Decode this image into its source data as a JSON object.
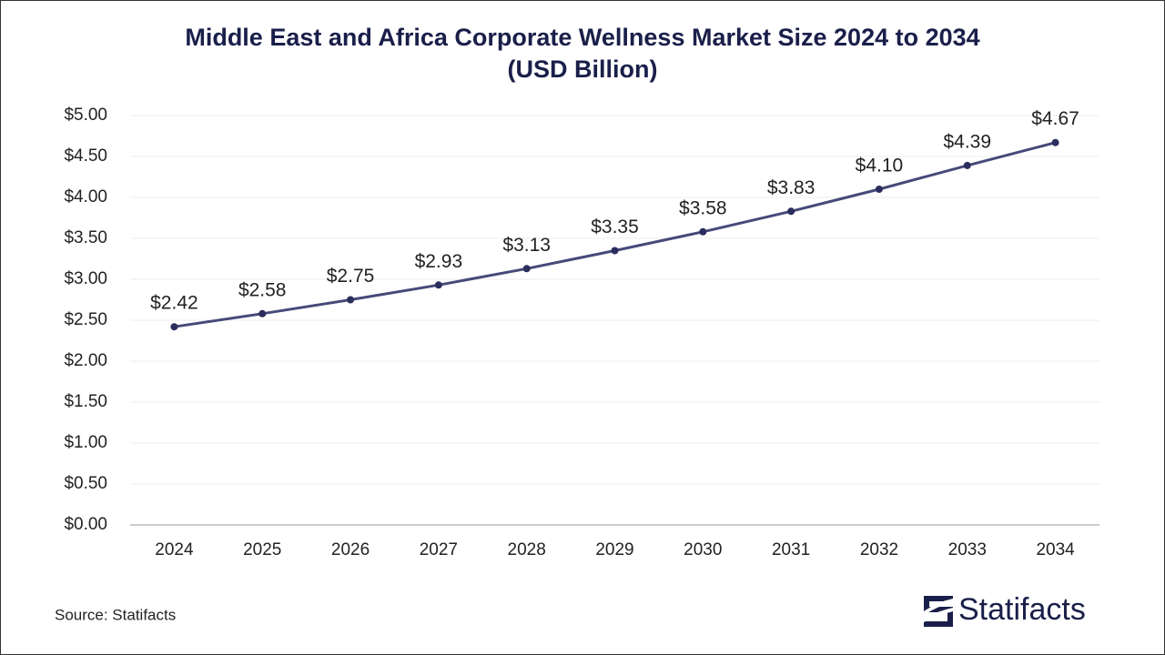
{
  "chart_data": {
    "type": "line",
    "title": [
      "Middle East and Africa Corporate Wellness Market Size 2024 to 2034",
      "(USD Billion)"
    ],
    "categories": [
      "2024",
      "2025",
      "2026",
      "2027",
      "2028",
      "2029",
      "2030",
      "2031",
      "2032",
      "2033",
      "2034"
    ],
    "values": [
      2.42,
      2.58,
      2.75,
      2.93,
      3.13,
      3.35,
      3.58,
      3.83,
      4.1,
      4.39,
      4.67
    ],
    "value_labels": [
      "$2.42",
      "$2.58",
      "$2.75",
      "$2.93",
      "$3.13",
      "$3.35",
      "$3.58",
      "$3.83",
      "$4.10",
      "$4.39",
      "$4.67"
    ],
    "color": "#464a78",
    "marker_color": "#2b2d5c",
    "ylim": [
      0,
      5
    ],
    "yticks": [
      {
        "value": 0,
        "label": "$0.00"
      },
      {
        "value": 0.5,
        "label": "$0.50"
      },
      {
        "value": 1,
        "label": "$1.00"
      },
      {
        "value": 1.5,
        "label": "$1.50"
      },
      {
        "value": 2,
        "label": "$2.00"
      },
      {
        "value": 2.5,
        "label": "$2.50"
      },
      {
        "value": 3,
        "label": "$3.00"
      },
      {
        "value": 3.5,
        "label": "$3.50"
      },
      {
        "value": 4,
        "label": "$4.00"
      },
      {
        "value": 4.5,
        "label": "$4.50"
      },
      {
        "value": 5,
        "label": "$5.00"
      }
    ],
    "grid": true,
    "source": "Source: Statifacts",
    "logo": "Statifacts"
  }
}
